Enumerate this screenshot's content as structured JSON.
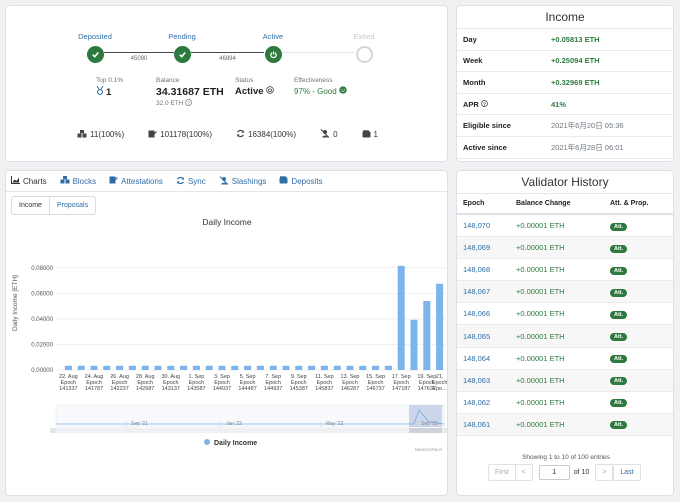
{
  "progress": {
    "steps": [
      {
        "label": "Deposited",
        "state": "done"
      },
      {
        "label": "Pending",
        "state": "done"
      },
      {
        "label": "Active",
        "state": "active"
      },
      {
        "label": "Exited",
        "state": "inactive"
      }
    ],
    "connectors": [
      "45090",
      "46894"
    ]
  },
  "stats": {
    "rank": {
      "label": "Top 0.1%",
      "value": "1"
    },
    "balance": {
      "label": "Balance",
      "value": "34.31687 ETH",
      "sub": "32.0 ETH"
    },
    "status": {
      "label": "Status",
      "value": "Active"
    },
    "effectiveness": {
      "label": "Effectiveness",
      "value": "97% - Good"
    }
  },
  "counts": {
    "blocks": "11(100%)",
    "attestations": "101178(100%)",
    "sync": "16384(100%)",
    "slashings": "0",
    "deposits": "1"
  },
  "income": {
    "title": "Income",
    "rows": [
      {
        "key": "Day",
        "value": "+0.05813 ETH",
        "style": "green"
      },
      {
        "key": "Week",
        "value": "+0.25094 ETH",
        "style": "green"
      },
      {
        "key": "Month",
        "value": "+0.32969 ETH",
        "style": "green"
      },
      {
        "key": "APR",
        "value": "41%",
        "style": "green"
      },
      {
        "key": "Eligible since",
        "value": "2021年6月20日 05:36",
        "style": "grey"
      },
      {
        "key": "Active since",
        "value": "2021年6月28日 06:01",
        "style": "grey"
      }
    ]
  },
  "tabs": [
    "Charts",
    "Blocks",
    "Attestations",
    "Sync",
    "Slashings",
    "Deposits"
  ],
  "subtabs": [
    "Income",
    "Proposals"
  ],
  "chart_data": {
    "type": "bar",
    "title": "Daily Income",
    "ylabel": "Daily Income [ETH]",
    "ylim": [
      0,
      0.09
    ],
    "yticks": [
      "0.00000",
      "0.02000",
      "0.04000",
      "0.06000",
      "0.08000"
    ],
    "series": [
      {
        "name": "Daily Income",
        "color": "#7cb5ec"
      }
    ],
    "categories": [
      "22. Aug",
      "",
      "24. Aug",
      "",
      "26. Aug",
      "",
      "28. Aug",
      "",
      "30. Aug",
      "",
      "1. Sep",
      "",
      "3. Sep",
      "",
      "5. Sep",
      "",
      "7. Sep",
      "",
      "9. Sep",
      "",
      "11. Sep",
      "",
      "13. Sep",
      "",
      "15. Sep",
      "",
      "17. Sep",
      "",
      "19. Sep",
      "21."
    ],
    "values": [
      0.0033,
      0.0033,
      0.0033,
      0.0033,
      0.0033,
      0.0033,
      0.0033,
      0.0033,
      0.0033,
      0.0033,
      0.0033,
      0.0033,
      0.0033,
      0.0033,
      0.0033,
      0.0033,
      0.0033,
      0.0033,
      0.0033,
      0.0033,
      0.0033,
      0.0033,
      0.0033,
      0.0033,
      0.0033,
      0.0033,
      0.0815,
      0.0393,
      0.054,
      0.0675
    ],
    "tick_labels": [
      {
        "date": "22. Aug",
        "epoch": "141337"
      },
      {
        "date": "24. Aug",
        "epoch": "141787"
      },
      {
        "date": "26. Aug",
        "epoch": "142237"
      },
      {
        "date": "28. Aug",
        "epoch": "142687"
      },
      {
        "date": "30. Aug",
        "epoch": "143137"
      },
      {
        "date": "1. Sep",
        "epoch": "143587"
      },
      {
        "date": "3. Sep",
        "epoch": "144037"
      },
      {
        "date": "5. Sep",
        "epoch": "144487"
      },
      {
        "date": "7. Sep",
        "epoch": "144937"
      },
      {
        "date": "9. Sep",
        "epoch": "145387"
      },
      {
        "date": "11. Sep",
        "epoch": "145837"
      },
      {
        "date": "13. Sep",
        "epoch": "146287"
      },
      {
        "date": "15. Sep",
        "epoch": "146737"
      },
      {
        "date": "17. Sep",
        "epoch": "147187"
      },
      {
        "date": "19. Sep",
        "epoch": "147637"
      },
      {
        "date": "21.",
        "epoch": "Epo..."
      }
    ],
    "epoch_word": "Epoch",
    "navigator_labels": [
      "Sep '21",
      "Jan '22",
      "May '22",
      "Sep '22"
    ],
    "legend": "Daily Income",
    "credits": "beaconcha.in"
  },
  "history": {
    "title": "Validator History",
    "columns": [
      "Epoch",
      "Balance Change",
      "Att. & Prop."
    ],
    "rows": [
      {
        "epoch": "148,070",
        "change": "+0.00001 ETH",
        "badge": "Att."
      },
      {
        "epoch": "148,069",
        "change": "+0.00001 ETH",
        "badge": "Att."
      },
      {
        "epoch": "148,068",
        "change": "+0.00001 ETH",
        "badge": "Att."
      },
      {
        "epoch": "148,067",
        "change": "+0.00001 ETH",
        "badge": "Att."
      },
      {
        "epoch": "148,066",
        "change": "+0.00001 ETH",
        "badge": "Att."
      },
      {
        "epoch": "148,065",
        "change": "+0.00001 ETH",
        "badge": "Att."
      },
      {
        "epoch": "148,064",
        "change": "+0.00001 ETH",
        "badge": "Att."
      },
      {
        "epoch": "148,063",
        "change": "+0.00001 ETH",
        "badge": "Att."
      },
      {
        "epoch": "148,062",
        "change": "+0.00001 ETH",
        "badge": "Att."
      },
      {
        "epoch": "148,061",
        "change": "+0.00001 ETH",
        "badge": "Att."
      }
    ],
    "showing": "Showing 1 to 10 of 100 entries",
    "pager": {
      "first": "First",
      "prev": "<",
      "page": "1",
      "of": "of 10",
      "next": ">",
      "last": "Last"
    }
  }
}
